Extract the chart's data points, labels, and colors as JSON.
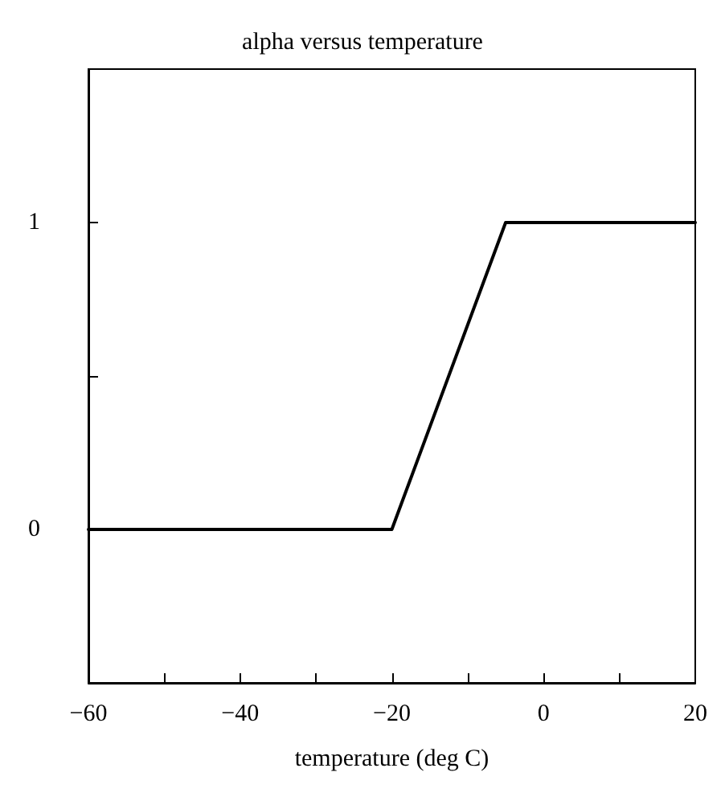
{
  "chart_data": {
    "type": "line",
    "title": "alpha versus temperature",
    "xlabel": "temperature (deg C)",
    "x": [
      -60,
      -20,
      -5,
      20
    ],
    "series": [
      {
        "color": "#000000",
        "values": [
          0,
          0,
          1,
          1
        ]
      }
    ],
    "xlim": [
      -60,
      20
    ],
    "xticks": [
      -60,
      {
        "value": -50,
        "label": null
      },
      -40,
      {
        "value": -30,
        "label": null
      },
      -20,
      {
        "value": -10,
        "label": null
      },
      0,
      {
        "value": 10,
        "label": null
      },
      20
    ],
    "ylim": [
      -0.5,
      1.5
    ],
    "yticks": [
      0,
      {
        "value": 0.5,
        "label": null
      },
      1
    ],
    "marker": "none",
    "line_style": "solid"
  }
}
